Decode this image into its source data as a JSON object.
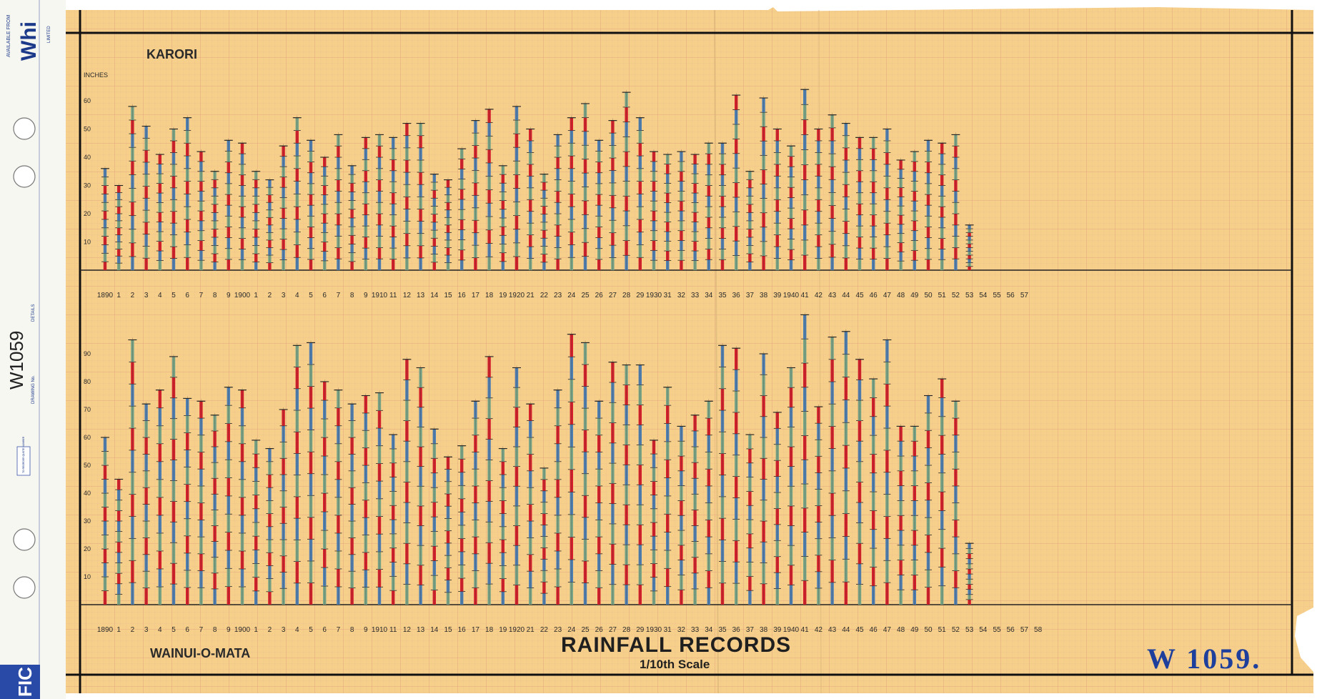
{
  "sheet": {
    "title": "RAINFALL RECORDS",
    "subtitle": "1/10th Scale",
    "drawing_number_stamp": "W 1059.",
    "drawing_number_margin": "W1059",
    "margin_strip": {
      "brand_line1": "AVAILABLE FROM",
      "brand": "Whi",
      "brand_line2": "LIMITED",
      "drawing_no_label": "DRAWING No.",
      "details_label": "DETAILS",
      "quote_label": "TO REORDER QUOTE NUMBER",
      "footer": "FIC"
    },
    "colors": {
      "paper": "#f6cf8b",
      "grid_minor": "#e9b98a",
      "grid_major": "#dc9e78",
      "border": "#111111",
      "bar_red": "#d3202a",
      "bar_blue": "#4f7eb0",
      "bar_green": "#7aa486",
      "stamp_blue": "#1f3f9c"
    }
  },
  "chart_data": [
    {
      "type": "bar",
      "station": "KARORI",
      "ylabel": "INCHES",
      "yticks": [
        10,
        20,
        30,
        40,
        50,
        60
      ],
      "ylim": [
        0,
        65
      ],
      "grid": true,
      "x_tick_labels": [
        "1890",
        "1",
        "2",
        "3",
        "4",
        "5",
        "6",
        "7",
        "8",
        "9",
        "1900",
        "1",
        "2",
        "3",
        "4",
        "5",
        "6",
        "7",
        "8",
        "9",
        "1910",
        "11",
        "12",
        "13",
        "14",
        "15",
        "16",
        "17",
        "18",
        "19",
        "1920",
        "21",
        "22",
        "23",
        "24",
        "25",
        "26",
        "27",
        "28",
        "29",
        "1930",
        "31",
        "32",
        "33",
        "34",
        "35",
        "36",
        "37",
        "38",
        "39",
        "1940",
        "41",
        "42",
        "43",
        "44",
        "45",
        "46",
        "47",
        "48",
        "49",
        "50",
        "51",
        "52",
        "53",
        "54",
        "55",
        "56",
        "57"
      ],
      "values": [
        36,
        30,
        58,
        51,
        41,
        50,
        54,
        42,
        35,
        46,
        45,
        35,
        32,
        44,
        54,
        46,
        40,
        48,
        37,
        47,
        48,
        47,
        52,
        52,
        34,
        32,
        43,
        53,
        57,
        37,
        58,
        50,
        34,
        48,
        54,
        59,
        46,
        53,
        63,
        54,
        42,
        41,
        42,
        41,
        45,
        45,
        62,
        35,
        61,
        50,
        44,
        64,
        50,
        55,
        52,
        47,
        47,
        50,
        39,
        42,
        46,
        45,
        48,
        16
      ]
    },
    {
      "type": "bar",
      "station": "WAINUI-O-MATA",
      "ylabel": "",
      "yticks": [
        10,
        20,
        30,
        40,
        50,
        60,
        70,
        80,
        90
      ],
      "ylim": [
        0,
        105
      ],
      "grid": true,
      "x_tick_labels": [
        "1890",
        "1",
        "2",
        "3",
        "4",
        "5",
        "6",
        "7",
        "8",
        "9",
        "1900",
        "1",
        "2",
        "3",
        "4",
        "5",
        "6",
        "7",
        "8",
        "9",
        "1910",
        "11",
        "12",
        "13",
        "14",
        "15",
        "16",
        "17",
        "18",
        "19",
        "1920",
        "21",
        "22",
        "23",
        "24",
        "25",
        "26",
        "27",
        "28",
        "29",
        "1930",
        "31",
        "32",
        "33",
        "34",
        "35",
        "36",
        "37",
        "38",
        "39",
        "1940",
        "41",
        "42",
        "43",
        "44",
        "45",
        "46",
        "47",
        "48",
        "49",
        "50",
        "51",
        "52",
        "53",
        "54",
        "55",
        "56",
        "57",
        "58"
      ],
      "values": [
        60,
        45,
        95,
        72,
        77,
        89,
        74,
        73,
        68,
        78,
        77,
        59,
        56,
        70,
        93,
        94,
        80,
        77,
        72,
        75,
        76,
        61,
        88,
        85,
        63,
        53,
        57,
        73,
        89,
        56,
        85,
        72,
        49,
        77,
        97,
        94,
        73,
        87,
        86,
        86,
        59,
        78,
        64,
        68,
        73,
        93,
        92,
        61,
        90,
        69,
        85,
        104,
        71,
        96,
        98,
        88,
        81,
        95,
        64,
        64,
        75,
        81,
        73,
        22
      ]
    }
  ]
}
